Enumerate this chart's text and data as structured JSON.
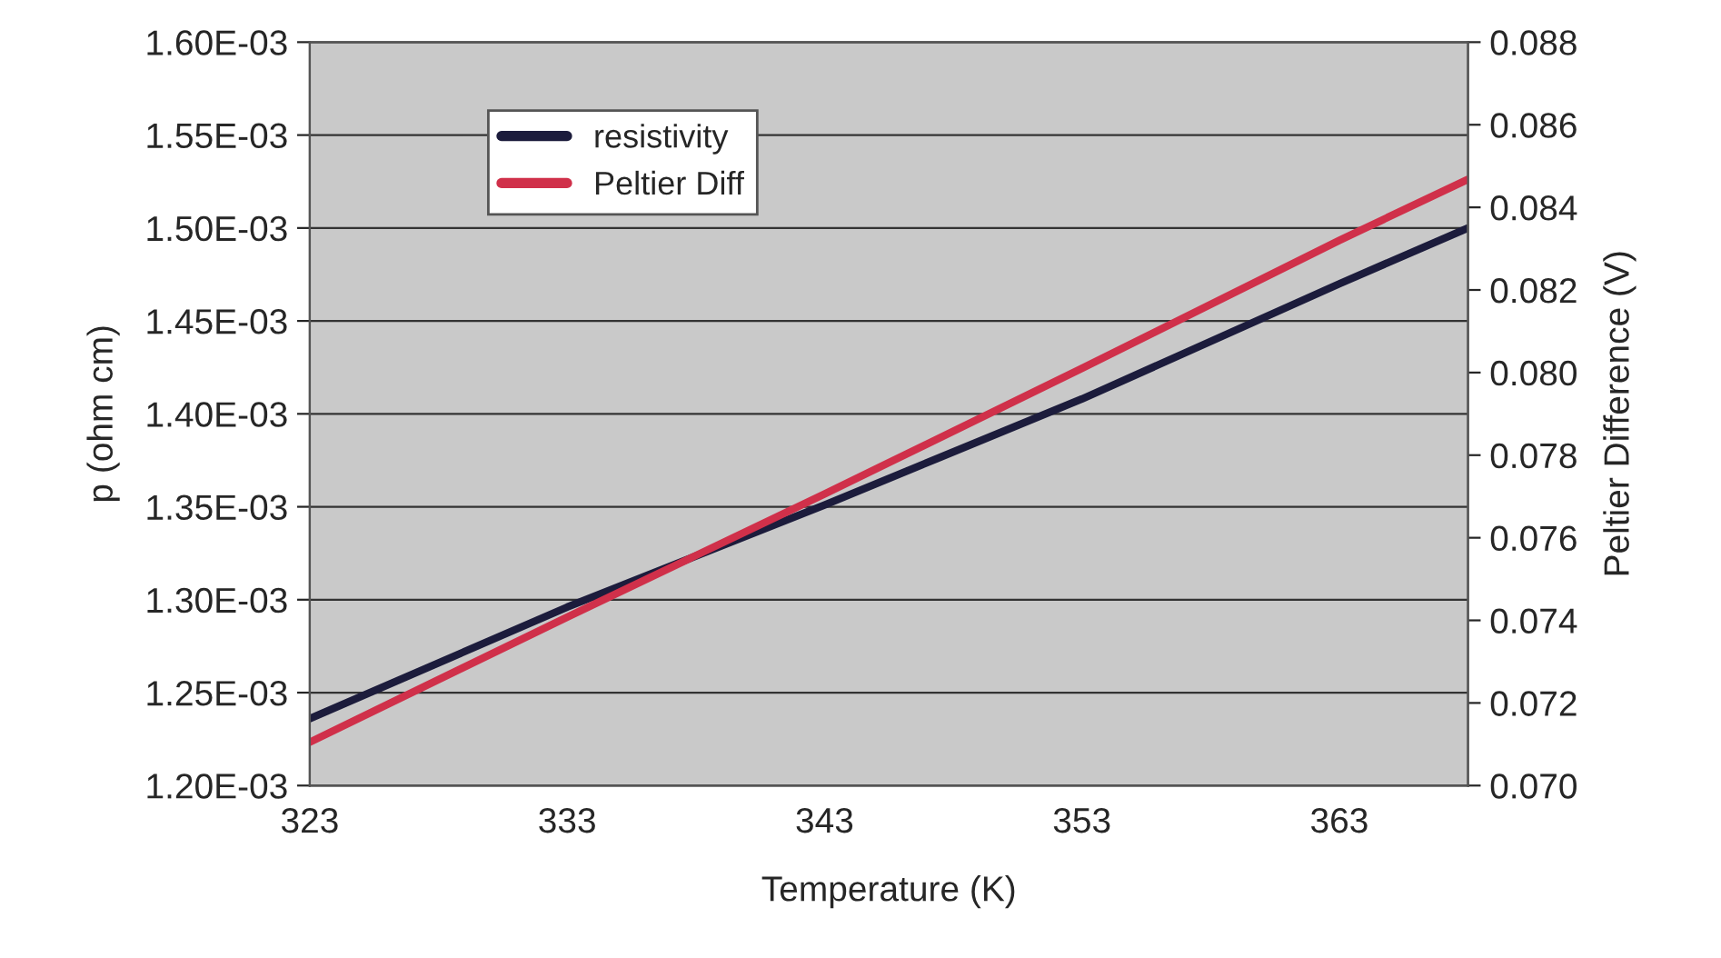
{
  "chart_data": {
    "type": "line",
    "xlabel": "Temperature (K)",
    "ylabel": "p (ohm cm)",
    "y2label": "Peltier Difference (V)",
    "x": [
      323,
      333,
      343,
      353,
      363,
      368
    ],
    "series": [
      {
        "name": "resistivity",
        "color": "#1c1c3c",
        "values": [
          0.001236,
          0.001296,
          0.001351,
          0.001408,
          0.00147,
          0.0015
        ]
      },
      {
        "name": "Peltier Diff",
        "color": "#d0304a",
        "axis": "y2",
        "values": [
          0.07105,
          0.07408,
          0.07706,
          0.0801,
          0.0832,
          0.08468
        ]
      }
    ],
    "xlim": [
      323,
      368
    ],
    "xticks": [
      323,
      333,
      343,
      353,
      363
    ],
    "ylim": [
      0.0012,
      0.0016
    ],
    "yticks": [
      {
        "value": 0.0012,
        "label": "1.20E-03"
      },
      {
        "value": 0.00125,
        "label": "1.25E-03"
      },
      {
        "value": 0.0013,
        "label": "1.30E-03"
      },
      {
        "value": 0.00135,
        "label": "1.35E-03"
      },
      {
        "value": 0.0014,
        "label": "1.40E-03"
      },
      {
        "value": 0.00145,
        "label": "1.45E-03"
      },
      {
        "value": 0.0015,
        "label": "1.50E-03"
      },
      {
        "value": 0.00155,
        "label": "1.55E-03"
      },
      {
        "value": 0.0016,
        "label": "1.60E-03"
      }
    ],
    "y2lim": [
      0.07,
      0.088
    ],
    "y2ticks": [
      {
        "value": 0.07,
        "label": "0.070"
      },
      {
        "value": 0.072,
        "label": "0.072"
      },
      {
        "value": 0.074,
        "label": "0.074"
      },
      {
        "value": 0.076,
        "label": "0.076"
      },
      {
        "value": 0.078,
        "label": "0.078"
      },
      {
        "value": 0.08,
        "label": "0.080"
      },
      {
        "value": 0.082,
        "label": "0.082"
      },
      {
        "value": 0.084,
        "label": "0.084"
      },
      {
        "value": 0.086,
        "label": "0.086"
      },
      {
        "value": 0.088,
        "label": "0.088"
      }
    ],
    "grid": "y",
    "legend": "top left",
    "marker": "none",
    "line_style": "solid"
  }
}
